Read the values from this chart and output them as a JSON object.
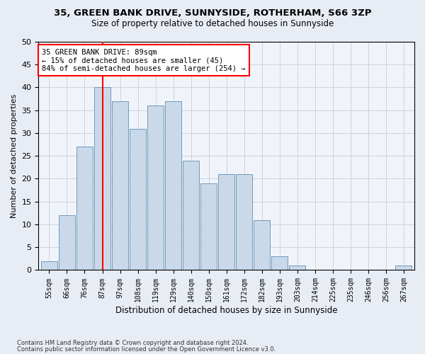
{
  "title1": "35, GREEN BANK DRIVE, SUNNYSIDE, ROTHERHAM, S66 3ZP",
  "title2": "Size of property relative to detached houses in Sunnyside",
  "xlabel": "Distribution of detached houses by size in Sunnyside",
  "ylabel": "Number of detached properties",
  "footnote1": "Contains HM Land Registry data © Crown copyright and database right 2024.",
  "footnote2": "Contains public sector information licensed under the Open Government Licence v3.0.",
  "bar_labels": [
    "55sqm",
    "66sqm",
    "76sqm",
    "87sqm",
    "97sqm",
    "108sqm",
    "119sqm",
    "129sqm",
    "140sqm",
    "150sqm",
    "161sqm",
    "172sqm",
    "182sqm",
    "193sqm",
    "203sqm",
    "214sqm",
    "225sqm",
    "235sqm",
    "246sqm",
    "256sqm",
    "267sqm"
  ],
  "bar_values": [
    2,
    12,
    27,
    40,
    37,
    31,
    36,
    37,
    24,
    19,
    21,
    21,
    11,
    3,
    1,
    0,
    0,
    0,
    0,
    0,
    1
  ],
  "bar_color": "#c9d9ea",
  "bar_edge_color": "#7099bb",
  "red_line_index": 3,
  "annotation_title": "35 GREEN BANK DRIVE: 89sqm",
  "annotation_line1": "← 15% of detached houses are smaller (45)",
  "annotation_line2": "84% of semi-detached houses are larger (254) →",
  "ylim": [
    0,
    50
  ],
  "yticks": [
    0,
    5,
    10,
    15,
    20,
    25,
    30,
    35,
    40,
    45,
    50
  ],
  "bg_color": "#e8edf5",
  "plot_bg_color": "#f0f4fa",
  "grid_color": "#c5cdd8"
}
